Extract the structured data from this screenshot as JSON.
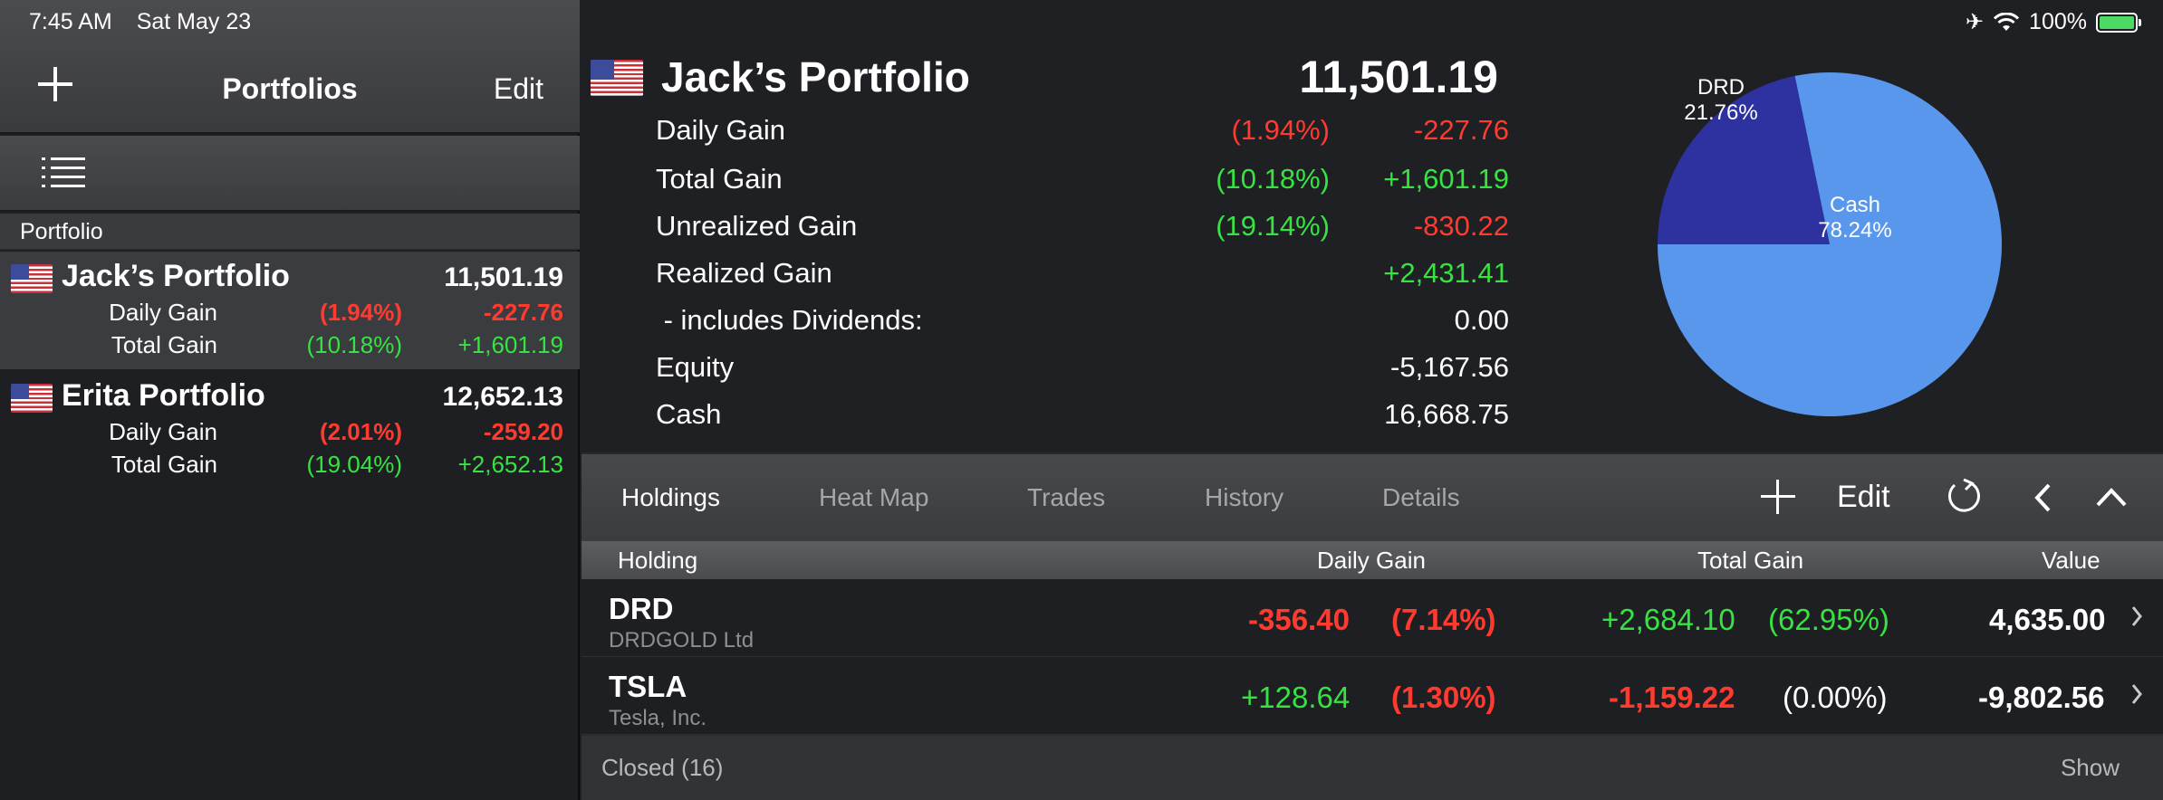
{
  "status": {
    "time": "7:45 AM",
    "date": "Sat May 23",
    "battery": "100%"
  },
  "sidebar": {
    "title": "Portfolios",
    "edit_label": "Edit",
    "section_header": "Portfolio",
    "portfolios": [
      {
        "name": "Jack’s Portfolio",
        "value": "11,501.19",
        "daily_label": "Daily Gain",
        "daily_pct": "(1.94%)",
        "daily_amt": "-227.76",
        "total_label": "Total Gain",
        "total_pct": "(10.18%)",
        "total_amt": "+1,601.19"
      },
      {
        "name": "Erita Portfolio",
        "value": "12,652.13",
        "daily_label": "Daily Gain",
        "daily_pct": "(2.01%)",
        "daily_amt": "-259.20",
        "total_label": "Total Gain",
        "total_pct": "(19.04%)",
        "total_amt": "+2,652.13"
      }
    ]
  },
  "summary": {
    "title": "Jack’s Portfolio",
    "value": "11,501.19",
    "rows": [
      {
        "label": "Daily Gain",
        "pct": "(1.94%)",
        "amt": "-227.76"
      },
      {
        "label": "Total Gain",
        "pct": "(10.18%)",
        "amt": "+1,601.19"
      },
      {
        "label": "Unrealized Gain",
        "pct": "(19.14%)",
        "amt": "-830.22"
      },
      {
        "label": "Realized Gain",
        "pct": "",
        "amt": "+2,431.41"
      },
      {
        "label": " - includes Dividends:",
        "pct": "",
        "amt": "0.00"
      },
      {
        "label": "Equity",
        "pct": "",
        "amt": "-5,167.56"
      },
      {
        "label": "Cash",
        "pct": "",
        "amt": "16,668.75"
      }
    ]
  },
  "chart_data": {
    "type": "pie",
    "slices": [
      {
        "label": "DRD",
        "value": 21.76,
        "pct_label": "21.76%",
        "color": "#2e31a0"
      },
      {
        "label": "Cash",
        "value": 78.24,
        "pct_label": "78.24%",
        "color": "#5897ec"
      }
    ]
  },
  "tabs": [
    {
      "label": "Holdings",
      "active": true
    },
    {
      "label": "Heat Map",
      "active": false
    },
    {
      "label": "Trades",
      "active": false
    },
    {
      "label": "History",
      "active": false
    },
    {
      "label": "Details",
      "active": false
    }
  ],
  "toolbar": {
    "edit_label": "Edit"
  },
  "table": {
    "headers": {
      "holding": "Holding",
      "daily": "Daily Gain",
      "total": "Total Gain",
      "value": "Value"
    },
    "rows": [
      {
        "symbol": "DRD",
        "name": "DRDGOLD Ltd",
        "daily_amt": "-356.40",
        "daily_pct": "(7.14%)",
        "total_amt": "+2,684.10",
        "total_pct": "(62.95%)",
        "value": "4,635.00"
      },
      {
        "symbol": "TSLA",
        "name": "Tesla, Inc.",
        "daily_amt": "+128.64",
        "daily_pct": "(1.30%)",
        "total_amt": "-1,159.22",
        "total_pct": "(0.00%)",
        "value": "-9,802.56"
      }
    ]
  },
  "closed": {
    "label": "Closed (16)",
    "show_label": "Show"
  },
  "colors": {
    "gain": "#36e341",
    "loss": "#ff3b30",
    "pie_drd": "#2e31a0",
    "pie_cash": "#5897ec"
  }
}
